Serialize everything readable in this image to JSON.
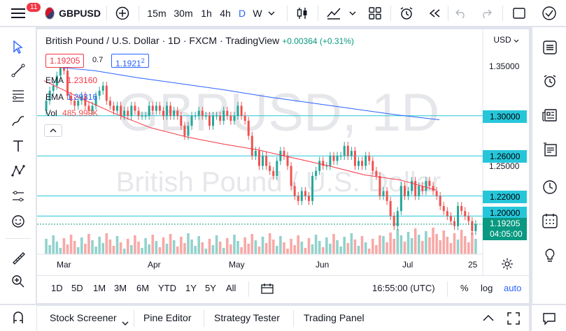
{
  "topbar": {
    "notif_count": "11",
    "symbol": "GBPUSD",
    "intervals": [
      "15m",
      "30m",
      "1h",
      "4h",
      "D",
      "W"
    ],
    "active_interval": "D"
  },
  "legend": {
    "title": "British Pound / U.S. Dollar · 1D · FXCM · TradingView",
    "change": "+0.00364 (+0.31%)",
    "sell_price": "1.19205",
    "spread": "0.7",
    "buy_price": "1.1921",
    "buy_price_sup": "2",
    "ema1_label": "EMA",
    "ema1_value": "1.23160",
    "ema2_label": "EMA",
    "ema2_value": "1.29316",
    "vol_label": "Vol",
    "vol_value": "485.999K"
  },
  "watermark": {
    "line1": "GBPUSD, 1D",
    "line2": "British Pound / U.S. Dollar"
  },
  "axis": {
    "currency": "USD",
    "price_labels": [
      "1.35000",
      "1.25000"
    ],
    "level_tags": [
      "1.30000",
      "1.26000",
      "1.22000",
      "1.20000"
    ],
    "last_price": "1.19205",
    "countdown": "04:05:00",
    "time_labels": [
      "Mar",
      "Apr",
      "May",
      "Jun",
      "Jul",
      "25"
    ]
  },
  "ranges": [
    "1D",
    "5D",
    "1M",
    "3M",
    "6M",
    "YTD",
    "1Y",
    "5Y",
    "All"
  ],
  "clock": "16:55:00 (UTC)",
  "scale_options": [
    "%",
    "log",
    "auto"
  ],
  "panels": [
    "Stock Screener",
    "Pine Editor",
    "Strategy Tester",
    "Trading Panel"
  ],
  "colors": {
    "up": "#26a69a",
    "down": "#ef5350",
    "ema_short": "#f23645",
    "ema_long": "#2962ff",
    "level": "#26c6da",
    "accent": "#2962ff"
  },
  "chart_data": {
    "type": "candlestick",
    "ema_short": [
      1.335,
      1.318,
      1.302,
      1.288,
      1.279,
      1.272,
      1.266,
      1.258,
      1.25,
      1.241,
      1.236,
      1.226
    ],
    "ema_long": [
      1.349,
      1.345,
      1.338,
      1.332,
      1.326,
      1.319,
      1.313,
      1.307,
      1.301,
      1.296
    ],
    "levels": [
      1.3,
      1.26,
      1.22,
      1.2
    ],
    "last_close": 1.19205,
    "ylim": [
      1.18,
      1.37
    ]
  }
}
